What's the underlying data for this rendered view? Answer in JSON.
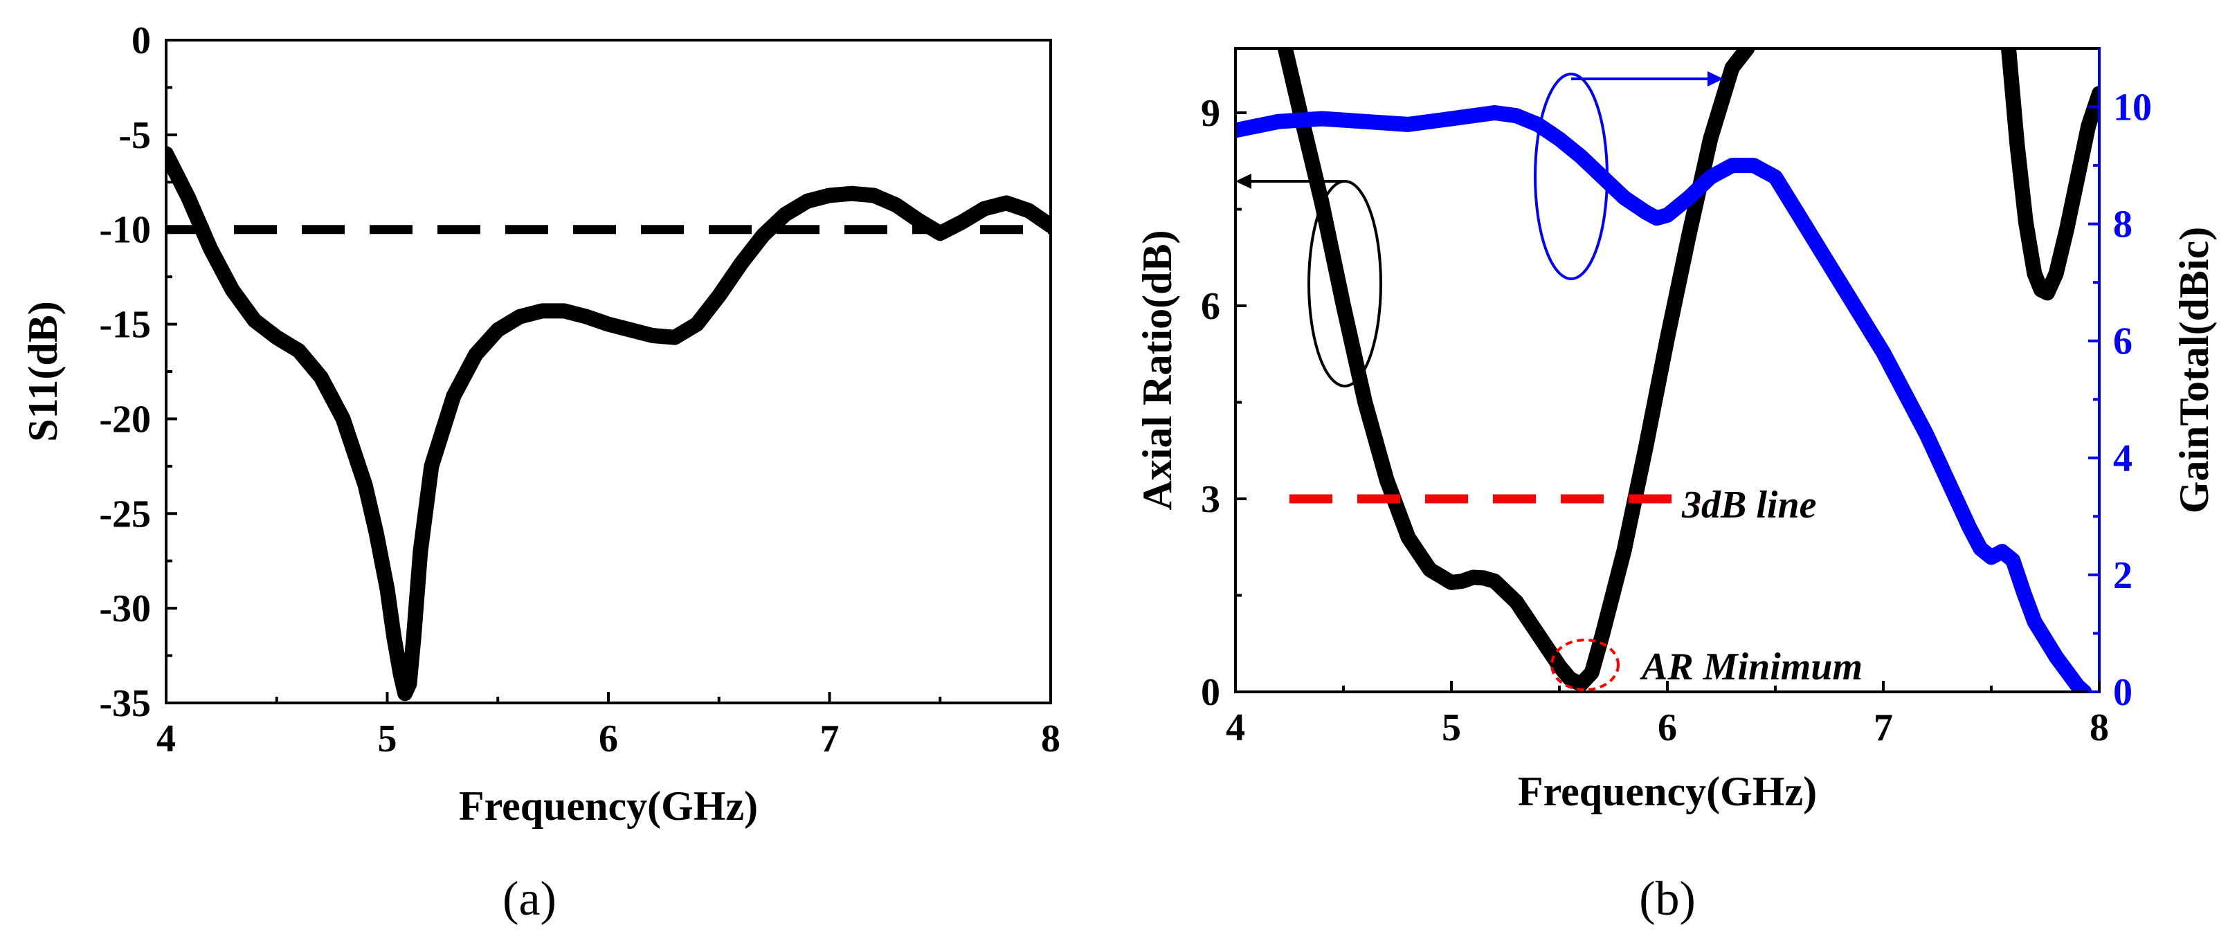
{
  "colors": {
    "black": "#000000",
    "blue": "#0000ff",
    "red": "#ff0000"
  },
  "chart_data": [
    {
      "id": "a",
      "type": "line",
      "caption": "(a)",
      "xlabel": "Frequency(GHz)",
      "ylabel": "S11(dB)",
      "xlim": [
        4,
        8
      ],
      "ylim": [
        -35,
        0
      ],
      "xticks": [
        "4",
        "5",
        "6",
        "7",
        "8"
      ],
      "yticks": [
        "0",
        "-5",
        "-10",
        "-15",
        "-20",
        "-25",
        "-30",
        "-35"
      ],
      "series": [
        {
          "name": "S11",
          "color": "#000000",
          "x": [
            4.0,
            4.1,
            4.2,
            4.3,
            4.4,
            4.5,
            4.6,
            4.7,
            4.8,
            4.9,
            4.95,
            5.0,
            5.03,
            5.06,
            5.08,
            5.1,
            5.12,
            5.15,
            5.2,
            5.3,
            5.4,
            5.5,
            5.6,
            5.7,
            5.8,
            5.9,
            6.0,
            6.1,
            6.2,
            6.3,
            6.4,
            6.5,
            6.6,
            6.7,
            6.8,
            6.9,
            7.0,
            7.1,
            7.2,
            7.3,
            7.4,
            7.5,
            7.6,
            7.7,
            7.8,
            7.9,
            8.0
          ],
          "values": [
            -6.0,
            -8.3,
            -11.0,
            -13.2,
            -14.8,
            -15.7,
            -16.4,
            -17.8,
            -20.0,
            -23.5,
            -26.0,
            -29.0,
            -31.5,
            -33.5,
            -34.5,
            -34.0,
            -31.5,
            -27.0,
            -22.5,
            -18.8,
            -16.6,
            -15.3,
            -14.6,
            -14.3,
            -14.3,
            -14.6,
            -15.0,
            -15.3,
            -15.6,
            -15.7,
            -15.0,
            -13.5,
            -11.8,
            -10.3,
            -9.2,
            -8.5,
            -8.2,
            -8.1,
            -8.2,
            -8.7,
            -9.5,
            -10.2,
            -9.6,
            -8.9,
            -8.6,
            -9.0,
            -9.8
          ]
        },
        {
          "name": "-10 dB reference",
          "style": "dashed",
          "color": "#000000",
          "x": [
            4.0,
            8.0
          ],
          "values": [
            -10,
            -10
          ]
        }
      ]
    },
    {
      "id": "b",
      "type": "line",
      "caption": "(b)",
      "xlabel": "Frequency(GHz)",
      "ylabel": "Axial Ratio(dB)",
      "ylabel_right": "GainTotal(dBic)",
      "xlim": [
        4,
        8
      ],
      "ylim": [
        0,
        10
      ],
      "ylim_right": [
        0,
        11
      ],
      "xticks": [
        "4",
        "5",
        "6",
        "7",
        "8"
      ],
      "yticks": [
        "0",
        "3",
        "6",
        "9"
      ],
      "yticks_right": [
        "0",
        "2",
        "4",
        "6",
        "8",
        "10"
      ],
      "annotations": {
        "threshold": "3dB line",
        "minimum": "AR Minimum"
      },
      "series": [
        {
          "name": "Axial Ratio",
          "axis": "left",
          "color": "#000000",
          "x": [
            4.23,
            4.3,
            4.4,
            4.5,
            4.6,
            4.7,
            4.8,
            4.9,
            5.0,
            5.05,
            5.1,
            5.15,
            5.2,
            5.3,
            5.4,
            5.5,
            5.55,
            5.6,
            5.65,
            5.7,
            5.8,
            5.9,
            6.0,
            6.1,
            6.2,
            6.3,
            6.37
          ],
          "values": [
            10.0,
            9.0,
            7.6,
            6.0,
            4.5,
            3.3,
            2.4,
            1.9,
            1.7,
            1.72,
            1.78,
            1.77,
            1.72,
            1.4,
            0.9,
            0.4,
            0.2,
            0.12,
            0.3,
            0.9,
            2.2,
            3.8,
            5.5,
            7.1,
            8.6,
            9.7,
            10.0
          ]
        },
        {
          "name": "Axial Ratio (upper band)",
          "axis": "left",
          "color": "#000000",
          "x": [
            7.58,
            7.62,
            7.66,
            7.7,
            7.73,
            7.76,
            7.8,
            7.85,
            7.9,
            7.95,
            8.0
          ],
          "values": [
            10.0,
            8.5,
            7.3,
            6.5,
            6.25,
            6.2,
            6.5,
            7.2,
            8.0,
            8.8,
            9.3
          ]
        },
        {
          "name": "3dB line",
          "axis": "left",
          "style": "dashed",
          "color": "#ff0000",
          "x": [
            4.25,
            6.15
          ],
          "values": [
            3,
            3
          ]
        },
        {
          "name": "Gain Total",
          "axis": "right",
          "color": "#0000ff",
          "x": [
            4.0,
            4.2,
            4.4,
            4.6,
            4.8,
            5.0,
            5.2,
            5.3,
            5.4,
            5.5,
            5.6,
            5.7,
            5.8,
            5.9,
            5.95,
            6.0,
            6.1,
            6.2,
            6.3,
            6.4,
            6.5,
            6.6,
            6.7,
            6.8,
            6.9,
            7.0,
            7.1,
            7.2,
            7.3,
            7.4,
            7.45,
            7.5,
            7.55,
            7.6,
            7.65,
            7.7,
            7.8,
            7.9,
            7.93
          ],
          "values": [
            9.6,
            9.75,
            9.8,
            9.75,
            9.7,
            9.8,
            9.9,
            9.85,
            9.7,
            9.45,
            9.15,
            8.8,
            8.45,
            8.2,
            8.1,
            8.15,
            8.45,
            8.8,
            9.0,
            9.0,
            8.8,
            8.2,
            7.6,
            7.0,
            6.4,
            5.8,
            5.1,
            4.4,
            3.6,
            2.8,
            2.45,
            2.3,
            2.4,
            2.25,
            1.7,
            1.2,
            0.6,
            0.1,
            0.0
          ]
        }
      ]
    }
  ]
}
